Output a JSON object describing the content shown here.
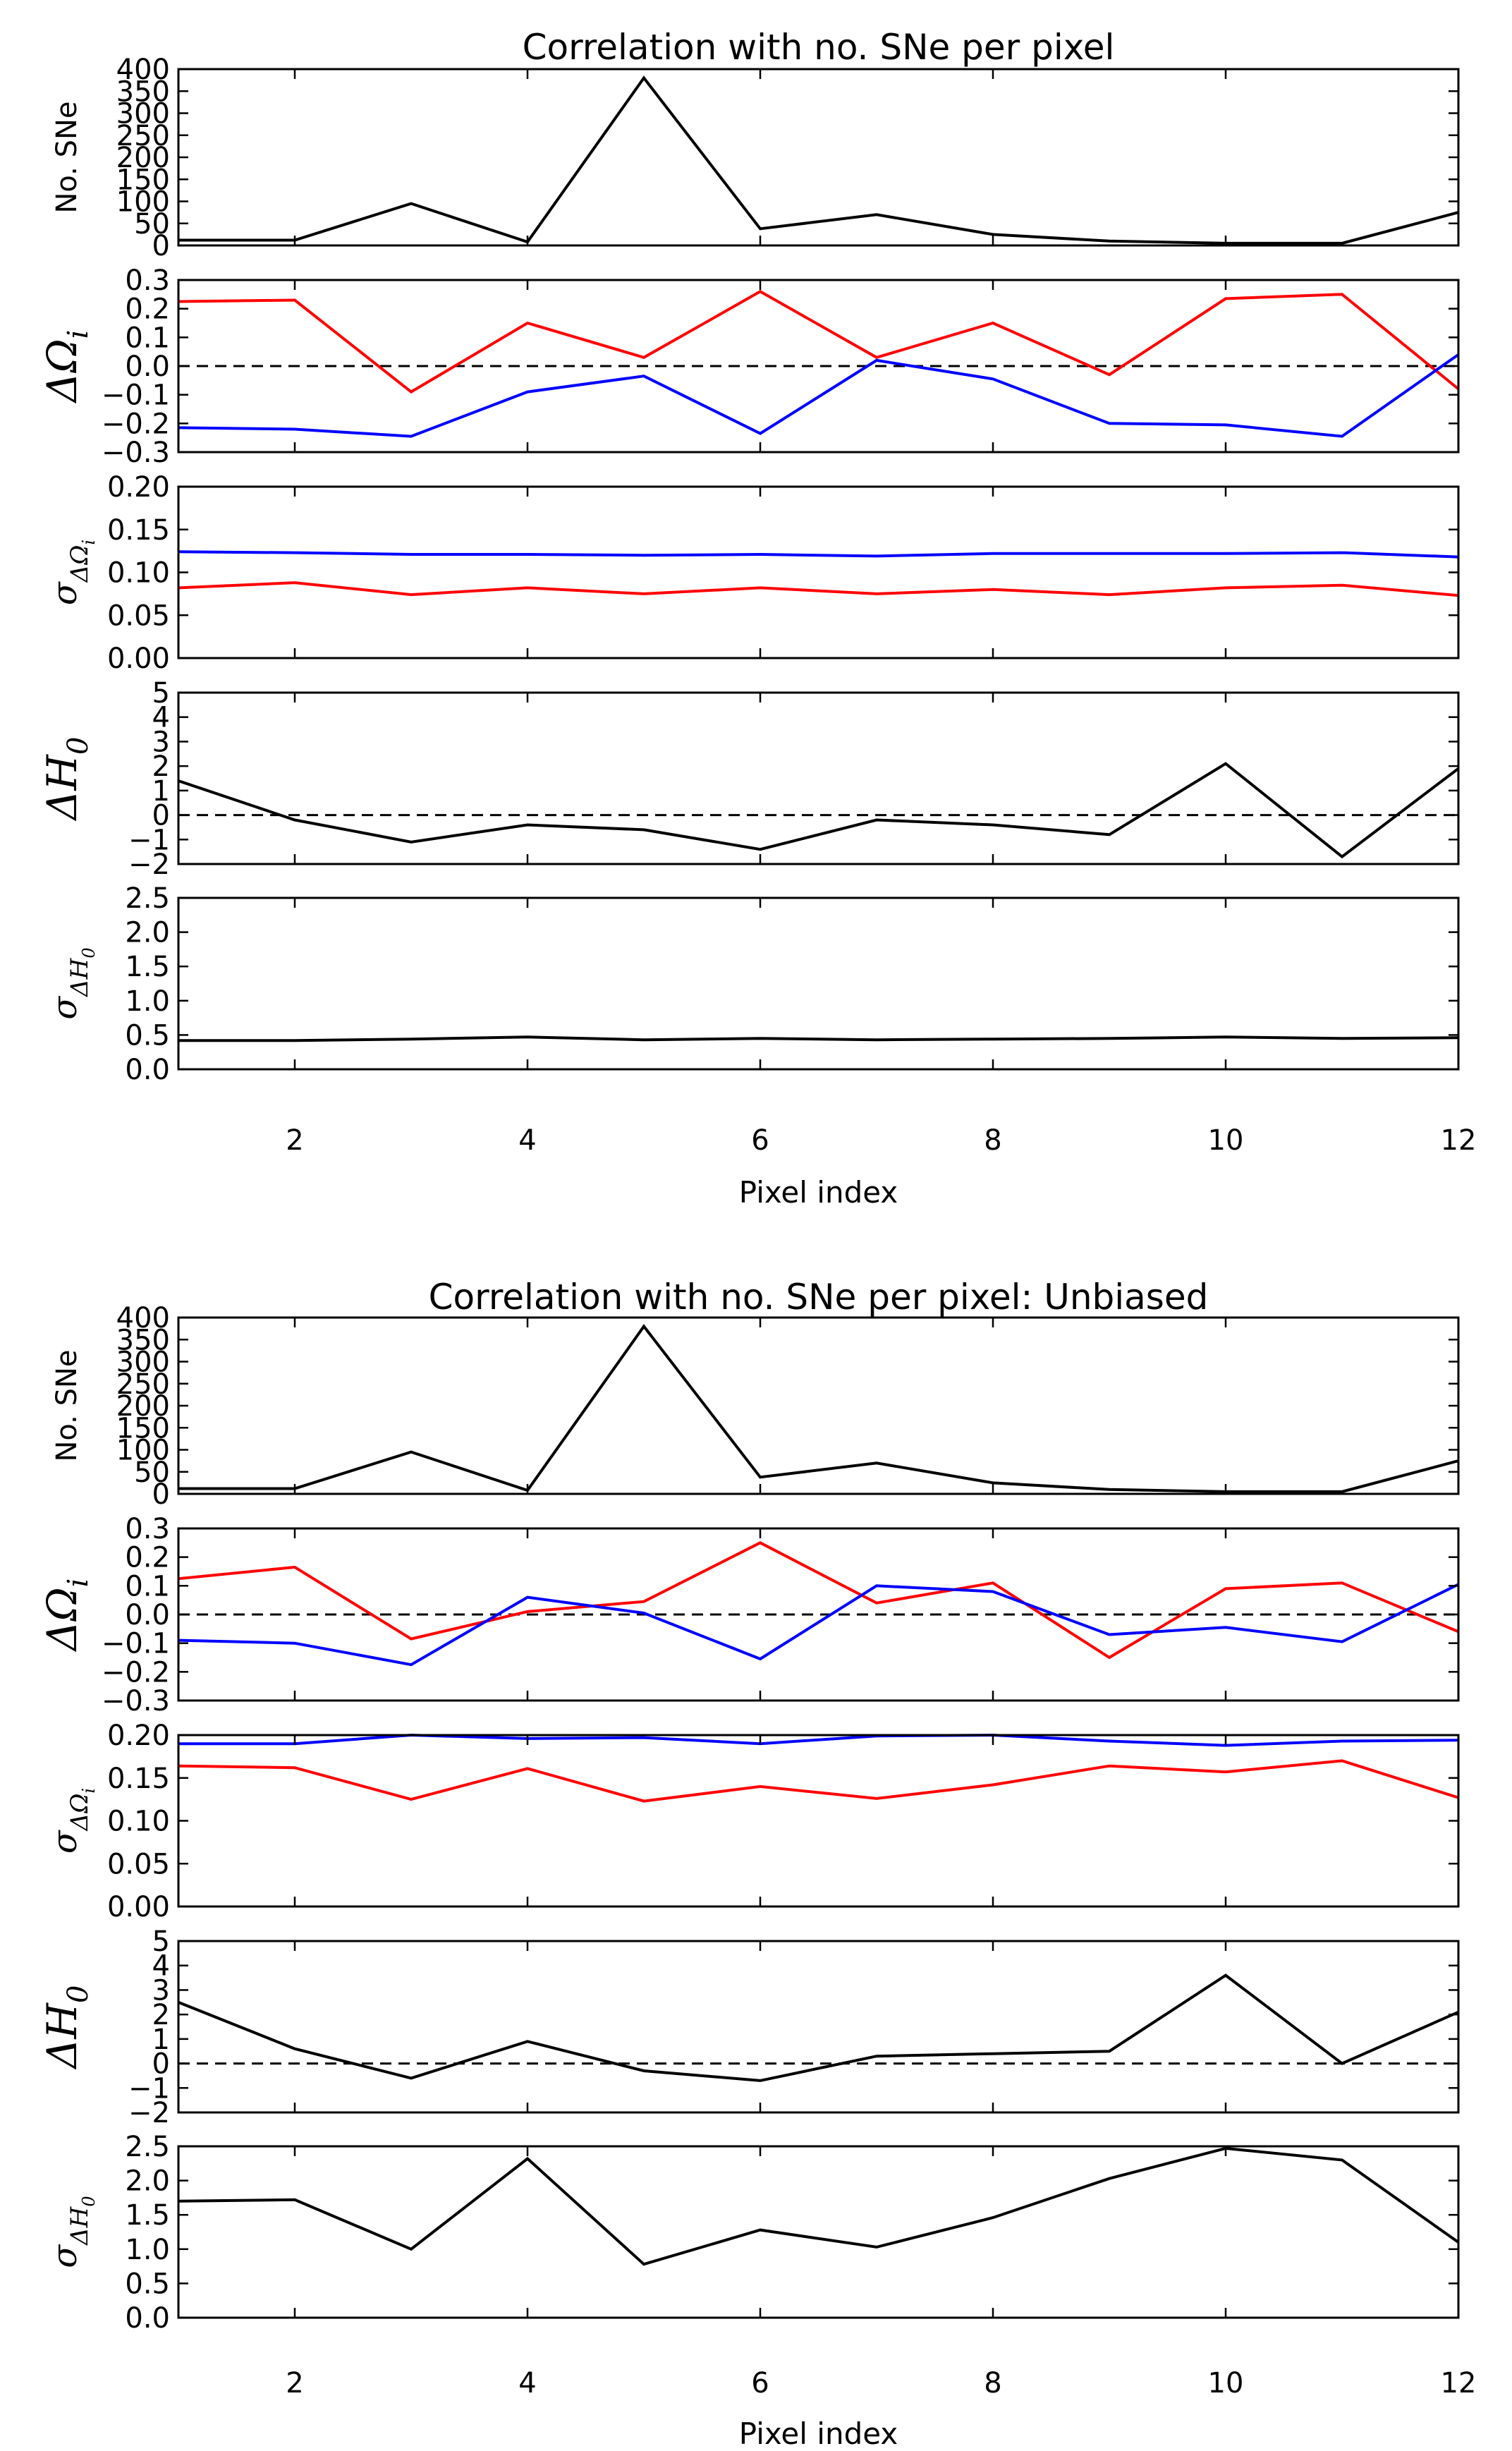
{
  "chart_data": [
    {
      "figure": "top",
      "type": "line",
      "title": "Correlation with no. SNe per pixel",
      "xlabel": "Pixel index",
      "x": [
        1,
        2,
        3,
        4,
        5,
        6,
        7,
        8,
        9,
        10,
        11,
        12
      ],
      "xlim": [
        1,
        12
      ],
      "xticks": [
        2,
        4,
        6,
        8,
        10,
        12
      ],
      "panels": [
        {
          "key": "nsne",
          "ylabel_parts": [
            {
              "t": "No. SNe"
            }
          ],
          "ylabel_style": "plain",
          "ylim": [
            0,
            400
          ],
          "yticks": [
            0,
            50,
            100,
            150,
            200,
            250,
            300,
            350,
            400
          ],
          "ytick_labels": [
            "0",
            "50",
            "100",
            "150",
            "200",
            "250",
            "300",
            "350",
            "400"
          ],
          "zero_line": false,
          "series": [
            {
              "name": "No. SNe",
              "color": "#000000",
              "values": [
                12,
                12,
                95,
                8,
                380,
                38,
                70,
                25,
                10,
                5,
                5,
                75
              ]
            }
          ]
        },
        {
          "key": "domega",
          "ylabel_parts": [
            {
              "t": "ΔΩ"
            },
            {
              "t": "i",
              "sub": true
            }
          ],
          "ylabel_style": "math",
          "ylim": [
            -0.3,
            0.3
          ],
          "yticks": [
            -0.3,
            -0.2,
            -0.1,
            0.0,
            0.1,
            0.2,
            0.3
          ],
          "ytick_labels": [
            "−0.3",
            "−0.2",
            "−0.1",
            "0.0",
            "0.1",
            "0.2",
            "0.3"
          ],
          "zero_line": true,
          "series": [
            {
              "name": "Omega red",
              "color": "#ff0000",
              "values": [
                0.225,
                0.23,
                -0.09,
                0.15,
                0.03,
                0.26,
                0.03,
                0.15,
                -0.03,
                0.235,
                0.25,
                -0.08
              ]
            },
            {
              "name": "Omega blue",
              "color": "#0000ff",
              "values": [
                -0.215,
                -0.22,
                -0.245,
                -0.09,
                -0.035,
                -0.235,
                0.02,
                -0.045,
                -0.2,
                -0.205,
                -0.245,
                0.04
              ]
            }
          ]
        },
        {
          "key": "sdomega",
          "ylabel_parts": [
            {
              "t": "σ"
            },
            {
              "t": "ΔΩ",
              "sub": true
            },
            {
              "t": "i",
              "subsub": true
            }
          ],
          "ylabel_style": "math-small",
          "ylim": [
            0.0,
            0.2
          ],
          "yticks": [
            0.0,
            0.05,
            0.1,
            0.15,
            0.2
          ],
          "ytick_labels": [
            "0.00",
            "0.05",
            "0.10",
            "0.15",
            "0.20"
          ],
          "zero_line": false,
          "series": [
            {
              "name": "sigma blue",
              "color": "#0000ff",
              "values": [
                0.124,
                0.123,
                0.121,
                0.121,
                0.12,
                0.121,
                0.119,
                0.122,
                0.122,
                0.122,
                0.123,
                0.118
              ]
            },
            {
              "name": "sigma red",
              "color": "#ff0000",
              "values": [
                0.082,
                0.088,
                0.074,
                0.082,
                0.075,
                0.082,
                0.075,
                0.08,
                0.074,
                0.082,
                0.085,
                0.073
              ]
            }
          ]
        },
        {
          "key": "dh0",
          "ylabel_parts": [
            {
              "t": "ΔH"
            },
            {
              "t": "0",
              "sub": true
            }
          ],
          "ylabel_style": "math",
          "ylim": [
            -2,
            5
          ],
          "yticks": [
            -2,
            -1,
            0,
            1,
            2,
            3,
            4,
            5
          ],
          "ytick_labels": [
            "−2",
            "−1",
            "0",
            "1",
            "2",
            "3",
            "4",
            "5"
          ],
          "zero_line": true,
          "series": [
            {
              "name": "Delta H0",
              "color": "#000000",
              "values": [
                1.4,
                -0.2,
                -1.1,
                -0.4,
                -0.6,
                -1.4,
                -0.2,
                -0.4,
                -0.8,
                2.1,
                -1.7,
                1.9
              ]
            }
          ]
        },
        {
          "key": "sdh0",
          "ylabel_parts": [
            {
              "t": "σ"
            },
            {
              "t": "ΔH",
              "sub": true
            },
            {
              "t": "0",
              "subsub": true
            }
          ],
          "ylabel_style": "math-small",
          "ylim": [
            0.0,
            2.5
          ],
          "yticks": [
            0.0,
            0.5,
            1.0,
            1.5,
            2.0,
            2.5
          ],
          "ytick_labels": [
            "0.0",
            "0.5",
            "1.0",
            "1.5",
            "2.0",
            "2.5"
          ],
          "zero_line": false,
          "series": [
            {
              "name": "sigma Delta H0",
              "color": "#000000",
              "values": [
                0.42,
                0.42,
                0.44,
                0.47,
                0.43,
                0.45,
                0.43,
                0.44,
                0.45,
                0.47,
                0.45,
                0.46
              ]
            }
          ]
        }
      ]
    },
    {
      "figure": "bottom",
      "type": "line",
      "title": "Correlation with no. SNe per pixel: Unbiased",
      "xlabel": "Pixel index",
      "x": [
        1,
        2,
        3,
        4,
        5,
        6,
        7,
        8,
        9,
        10,
        11,
        12
      ],
      "xlim": [
        1,
        12
      ],
      "xticks": [
        2,
        4,
        6,
        8,
        10,
        12
      ],
      "panels": [
        {
          "key": "nsne",
          "ylabel_parts": [
            {
              "t": "No. SNe"
            }
          ],
          "ylabel_style": "plain",
          "ylim": [
            0,
            400
          ],
          "yticks": [
            0,
            50,
            100,
            150,
            200,
            250,
            300,
            350,
            400
          ],
          "ytick_labels": [
            "0",
            "50",
            "100",
            "150",
            "200",
            "250",
            "300",
            "350",
            "400"
          ],
          "zero_line": false,
          "series": [
            {
              "name": "No. SNe",
              "color": "#000000",
              "values": [
                12,
                12,
                95,
                8,
                380,
                38,
                70,
                25,
                10,
                5,
                5,
                75
              ]
            }
          ]
        },
        {
          "key": "domega",
          "ylabel_parts": [
            {
              "t": "ΔΩ"
            },
            {
              "t": "i",
              "sub": true
            }
          ],
          "ylabel_style": "math",
          "ylim": [
            -0.3,
            0.3
          ],
          "yticks": [
            -0.3,
            -0.2,
            -0.1,
            0.0,
            0.1,
            0.2,
            0.3
          ],
          "ytick_labels": [
            "−0.3",
            "−0.2",
            "−0.1",
            "0.0",
            "0.1",
            "0.2",
            "0.3"
          ],
          "zero_line": true,
          "series": [
            {
              "name": "Omega red",
              "color": "#ff0000",
              "values": [
                0.125,
                0.165,
                -0.085,
                0.01,
                0.045,
                0.25,
                0.04,
                0.11,
                -0.15,
                0.09,
                0.11,
                -0.06
              ]
            },
            {
              "name": "Omega blue",
              "color": "#0000ff",
              "values": [
                -0.09,
                -0.1,
                -0.175,
                0.06,
                0.005,
                -0.155,
                0.1,
                0.08,
                -0.07,
                -0.045,
                -0.095,
                0.105
              ]
            }
          ]
        },
        {
          "key": "sdomega",
          "ylabel_parts": [
            {
              "t": "σ"
            },
            {
              "t": "ΔΩ",
              "sub": true
            },
            {
              "t": "i",
              "subsub": true
            }
          ],
          "ylabel_style": "math-small",
          "ylim": [
            0.0,
            0.2
          ],
          "yticks": [
            0.0,
            0.05,
            0.1,
            0.15,
            0.2
          ],
          "ytick_labels": [
            "0.00",
            "0.05",
            "0.10",
            "0.15",
            "0.20"
          ],
          "zero_line": false,
          "series": [
            {
              "name": "sigma blue",
              "color": "#0000ff",
              "values": [
                0.19,
                0.19,
                0.2,
                0.196,
                0.197,
                0.19,
                0.199,
                0.2,
                0.193,
                0.188,
                0.193,
                0.194
              ]
            },
            {
              "name": "sigma red",
              "color": "#ff0000",
              "values": [
                0.164,
                0.162,
                0.125,
                0.161,
                0.123,
                0.14,
                0.126,
                0.142,
                0.164,
                0.157,
                0.17,
                0.127
              ]
            }
          ]
        },
        {
          "key": "dh0",
          "ylabel_parts": [
            {
              "t": "ΔH"
            },
            {
              "t": "0",
              "sub": true
            }
          ],
          "ylabel_style": "math",
          "ylim": [
            -2,
            5
          ],
          "yticks": [
            -2,
            -1,
            0,
            1,
            2,
            3,
            4,
            5
          ],
          "ytick_labels": [
            "−2",
            "−1",
            "0",
            "1",
            "2",
            "3",
            "4",
            "5"
          ],
          "zero_line": true,
          "series": [
            {
              "name": "Delta H0",
              "color": "#000000",
              "values": [
                2.5,
                0.6,
                -0.6,
                0.9,
                -0.3,
                -0.7,
                0.3,
                0.4,
                0.5,
                3.6,
                0.0,
                2.1
              ]
            }
          ]
        },
        {
          "key": "sdh0",
          "ylabel_parts": [
            {
              "t": "σ"
            },
            {
              "t": "ΔH",
              "sub": true
            },
            {
              "t": "0",
              "subsub": true
            }
          ],
          "ylabel_style": "math-small",
          "ylim": [
            0.0,
            2.5
          ],
          "yticks": [
            0.0,
            0.5,
            1.0,
            1.5,
            2.0,
            2.5
          ],
          "ytick_labels": [
            "0.0",
            "0.5",
            "1.0",
            "1.5",
            "2.0",
            "2.5"
          ],
          "zero_line": false,
          "series": [
            {
              "name": "sigma Delta H0",
              "color": "#000000",
              "values": [
                1.7,
                1.72,
                1.0,
                2.32,
                0.78,
                1.28,
                1.03,
                1.46,
                2.03,
                2.47,
                2.3,
                1.1
              ]
            }
          ]
        }
      ]
    }
  ]
}
